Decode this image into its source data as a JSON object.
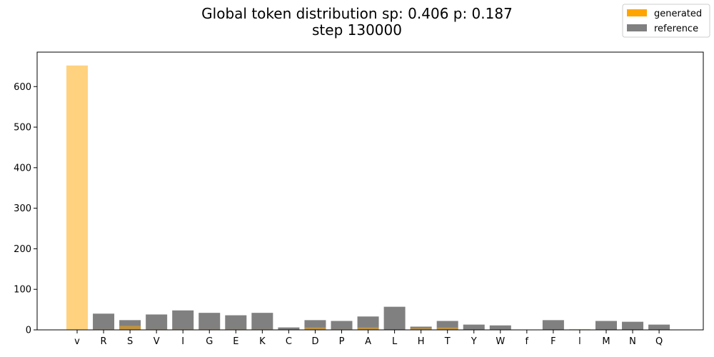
{
  "chart_data": {
    "type": "bar",
    "title_line1": "Global token distribution sp: 0.406 p: 0.187",
    "title_line2": "step 130000",
    "categories": [
      "v",
      "R",
      "S",
      "V",
      "I",
      "G",
      "E",
      "K",
      "C",
      "D",
      "P",
      "A",
      "L",
      "H",
      "T",
      "Y",
      "W",
      "f",
      "F",
      "l",
      "M",
      "N",
      "Q"
    ],
    "series": [
      {
        "name": "reference",
        "color": "#808080",
        "alpha": 1.0,
        "values": [
          0,
          40,
          24,
          38,
          48,
          42,
          36,
          42,
          6,
          24,
          22,
          33,
          57,
          8,
          22,
          13,
          11,
          0,
          24,
          0,
          22,
          20,
          13
        ]
      },
      {
        "name": "generated",
        "color": "#FFA500",
        "alpha": 0.5,
        "values": [
          652,
          2,
          10,
          2,
          2,
          2,
          2,
          2,
          1,
          6,
          2,
          6,
          1,
          4,
          6,
          1,
          1,
          0,
          1,
          2,
          1,
          1,
          1
        ]
      }
    ],
    "yticks": [
      0,
      100,
      200,
      300,
      400,
      500,
      600
    ],
    "ylim": [
      0,
      685
    ],
    "legend": {
      "placement": "top-right",
      "entries": [
        {
          "label": "generated",
          "color": "#FFA500"
        },
        {
          "label": "reference",
          "color": "#808080"
        }
      ]
    }
  }
}
